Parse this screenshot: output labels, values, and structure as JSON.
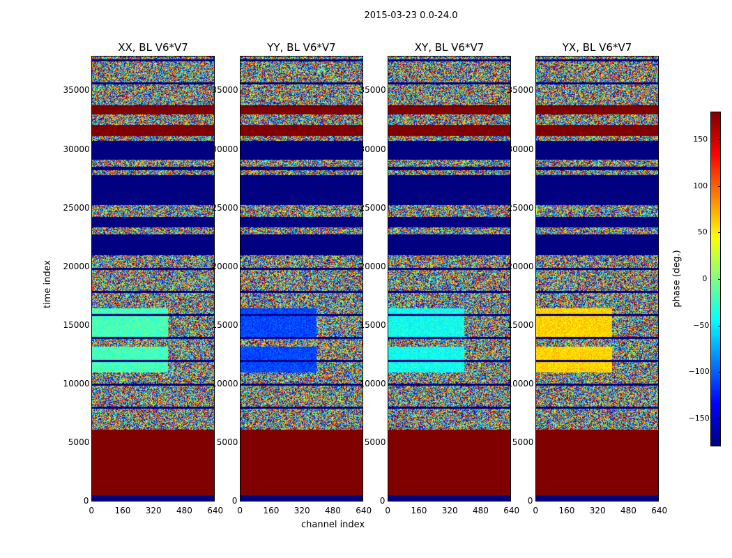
{
  "figure": {
    "suptitle": "2015-03-23 0.0-24.0",
    "xlabel": "channel index",
    "ylabel": "time index",
    "colorbar_label": "phase (deg.)"
  },
  "colors": {
    "min": "#000080",
    "max": "#800000"
  },
  "chart_data": [
    {
      "type": "heatmap",
      "title": "XX, BL V6*V7",
      "xlim": [
        0,
        640
      ],
      "ylim": [
        0,
        38000
      ],
      "x_ticks": [
        "0",
        "160",
        "320",
        "480",
        "640"
      ],
      "y_ticks": [
        "0",
        "5000",
        "10000",
        "15000",
        "20000",
        "25000",
        "30000",
        "35000"
      ],
      "clim": [
        -180,
        180
      ],
      "colormap": "jet",
      "grid": false
    },
    {
      "type": "heatmap",
      "title": "YY, BL V6*V7",
      "xlim": [
        0,
        640
      ],
      "ylim": [
        0,
        38000
      ],
      "x_ticks": [
        "0",
        "160",
        "320",
        "480",
        "640"
      ],
      "y_ticks": [
        "0",
        "5000",
        "10000",
        "15000",
        "20000",
        "25000",
        "30000",
        "35000"
      ],
      "clim": [
        -180,
        180
      ],
      "colormap": "jet",
      "grid": false
    },
    {
      "type": "heatmap",
      "title": "XY, BL V6*V7",
      "xlim": [
        0,
        640
      ],
      "ylim": [
        0,
        38000
      ],
      "x_ticks": [
        "0",
        "160",
        "320",
        "480",
        "640"
      ],
      "y_ticks": [
        "0",
        "5000",
        "10000",
        "15000",
        "20000",
        "25000",
        "30000",
        "35000"
      ],
      "clim": [
        -180,
        180
      ],
      "colormap": "jet",
      "grid": false
    },
    {
      "type": "heatmap",
      "title": "YX, BL V6*V7",
      "xlim": [
        0,
        640
      ],
      "ylim": [
        0,
        38000
      ],
      "x_ticks": [
        "0",
        "160",
        "320",
        "480",
        "640"
      ],
      "y_ticks": [
        "0",
        "5000",
        "10000",
        "15000",
        "20000",
        "25000",
        "30000",
        "35000"
      ],
      "clim": [
        -180,
        180
      ],
      "colormap": "jet",
      "grid": false
    }
  ],
  "colorbar": {
    "ticks": [
      "150",
      "100",
      "50",
      "0",
      "−50",
      "−100",
      "−150"
    ],
    "tick_values": [
      150,
      100,
      50,
      0,
      -50,
      -100,
      -150
    ],
    "range": [
      -180,
      180
    ],
    "colormap": "jet"
  }
}
